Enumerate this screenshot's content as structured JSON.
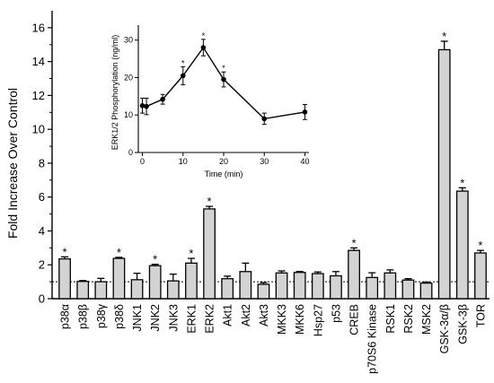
{
  "chart_data": [
    {
      "type": "bar",
      "ylabel": "Fold Increase Over Control",
      "xlabel": "",
      "ylim": [
        0,
        17
      ],
      "yticks": [
        0,
        2,
        4,
        6,
        8,
        10,
        12,
        14,
        16
      ],
      "baseline": 1,
      "bar_color": "#d3d3d3",
      "categories": [
        "p38α",
        "p38β",
        "p38γ",
        "p38δ",
        "JNK1",
        "JNK2",
        "JNK3",
        "ERK1",
        "ERK2",
        "Akt1",
        "Akt2",
        "Akt3",
        "MKK3",
        "MKK6",
        "Hsp27",
        "p53",
        "CREB",
        "p70S6 Kinase",
        "RSK1",
        "RSK2",
        "MSK2",
        "GSK-3α/β",
        "GSK-3β",
        "TOR"
      ],
      "series": [
        {
          "values": [
            2.35,
            1.02,
            1.0,
            2.38,
            1.12,
            1.95,
            1.05,
            2.1,
            5.3,
            1.18,
            1.6,
            0.85,
            1.52,
            1.55,
            1.48,
            1.35,
            2.85,
            1.25,
            1.52,
            1.1,
            0.92,
            14.7,
            6.35,
            2.7
          ],
          "errors": [
            0.12,
            0.05,
            0.2,
            0.06,
            0.38,
            0.08,
            0.4,
            0.28,
            0.15,
            0.15,
            0.5,
            0.1,
            0.12,
            0.06,
            0.1,
            0.25,
            0.15,
            0.28,
            0.18,
            0.08,
            0.06,
            0.5,
            0.2,
            0.15
          ],
          "significant": [
            true,
            false,
            false,
            true,
            false,
            true,
            false,
            true,
            true,
            false,
            false,
            false,
            false,
            false,
            false,
            false,
            true,
            false,
            false,
            false,
            false,
            true,
            true,
            true
          ]
        }
      ],
      "significance_marker": "*"
    },
    {
      "type": "line",
      "title": "",
      "xlabel": "Time  (min)",
      "ylabel": "ERK1/2 Phosphorylation (ng/ml)",
      "xlim": [
        -1,
        41
      ],
      "ylim": [
        0,
        34
      ],
      "xticks": [
        0,
        10,
        20,
        30,
        40
      ],
      "yticks": [
        0,
        10,
        20,
        30
      ],
      "series": [
        {
          "x": [
            0,
            1,
            5,
            10,
            15,
            20,
            30,
            40
          ],
          "y": [
            12.5,
            12.3,
            14.2,
            20.5,
            28.0,
            19.5,
            9.0,
            10.8
          ],
          "errors": [
            2.0,
            2.2,
            1.3,
            2.4,
            2.2,
            2.0,
            1.5,
            2.0
          ],
          "significant": [
            false,
            false,
            false,
            true,
            true,
            true,
            false,
            false
          ]
        }
      ],
      "significance_marker": "*"
    }
  ]
}
